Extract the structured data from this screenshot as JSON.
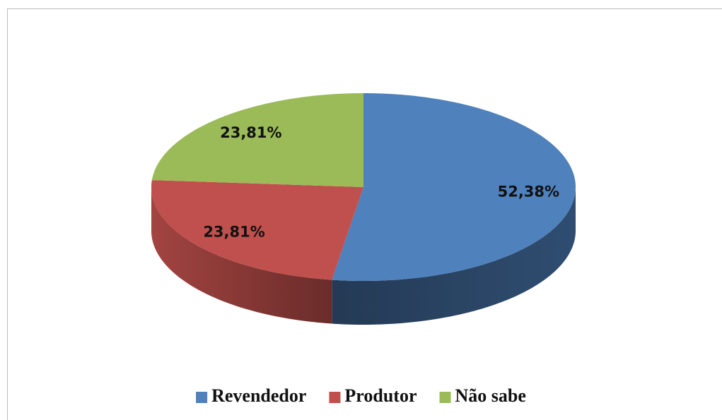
{
  "chart_data": {
    "type": "pie",
    "categories": [
      "Revendedor",
      "Produtor",
      "Não sabe"
    ],
    "values": [
      52.38,
      23.81,
      23.81
    ],
    "value_labels": [
      "52,38%",
      "23,81%",
      "23,81%"
    ],
    "colors": [
      "#4f81bd",
      "#c0504d",
      "#9bbb59"
    ],
    "legend": "bottom"
  }
}
